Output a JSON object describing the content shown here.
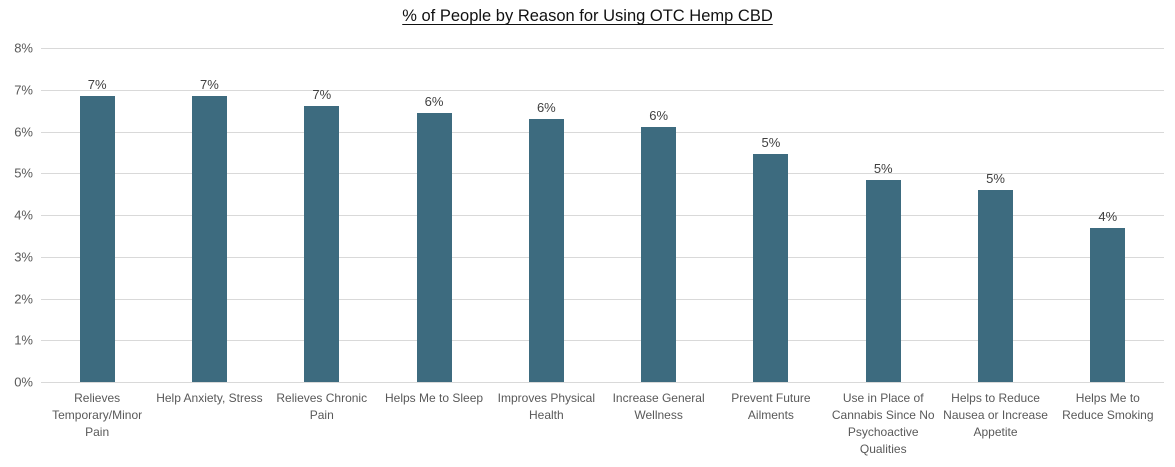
{
  "chart_data": {
    "type": "bar",
    "title": "% of People by Reason for Using OTC Hemp CBD",
    "categories": [
      "Relieves Temporary/Minor Pain",
      "Help Anxiety, Stress",
      "Relieves Chronic Pain",
      "Helps Me to Sleep",
      "Improves Physical Health",
      "Increase General Wellness",
      "Prevent Future Ailments",
      "Use in Place of Cannabis Since No Psychoactive Qualities",
      "Helps to Reduce Nausea or Increase Appetite",
      "Helps Me to Reduce Smoking"
    ],
    "category_lines": [
      [
        "Relieves",
        "Temporary/Minor",
        "Pain"
      ],
      [
        "Help Anxiety, Stress"
      ],
      [
        "Relieves Chronic",
        "Pain"
      ],
      [
        "Helps Me to Sleep"
      ],
      [
        "Improves Physical",
        "Health"
      ],
      [
        "Increase General",
        "Wellness"
      ],
      [
        "Prevent Future",
        "Ailments"
      ],
      [
        "Use in Place of",
        "Cannabis Since No",
        "Psychoactive",
        "Qualities"
      ],
      [
        "Helps to Reduce",
        "Nausea or Increase",
        "Appetite"
      ],
      [
        "Helps Me to",
        "Reduce Smoking"
      ]
    ],
    "values": [
      6.85,
      6.85,
      6.6,
      6.45,
      6.3,
      6.1,
      5.45,
      4.85,
      4.6,
      3.7
    ],
    "value_labels": [
      "7%",
      "7%",
      "7%",
      "6%",
      "6%",
      "6%",
      "5%",
      "5%",
      "5%",
      "4%"
    ],
    "y_ticks": [
      "8%",
      "7%",
      "6%",
      "5%",
      "4%",
      "3%",
      "2%",
      "1%",
      "0%"
    ],
    "ylim": [
      0,
      8
    ],
    "xlabel": "",
    "ylabel": "",
    "grid": true,
    "legend": "none",
    "colors": {
      "bar": "#3D6B7F",
      "gridline": "#D9D9D9",
      "axis_labels": "#595959",
      "data_labels": "#404040",
      "title": "#111111",
      "background": "#FFFFFF"
    }
  }
}
